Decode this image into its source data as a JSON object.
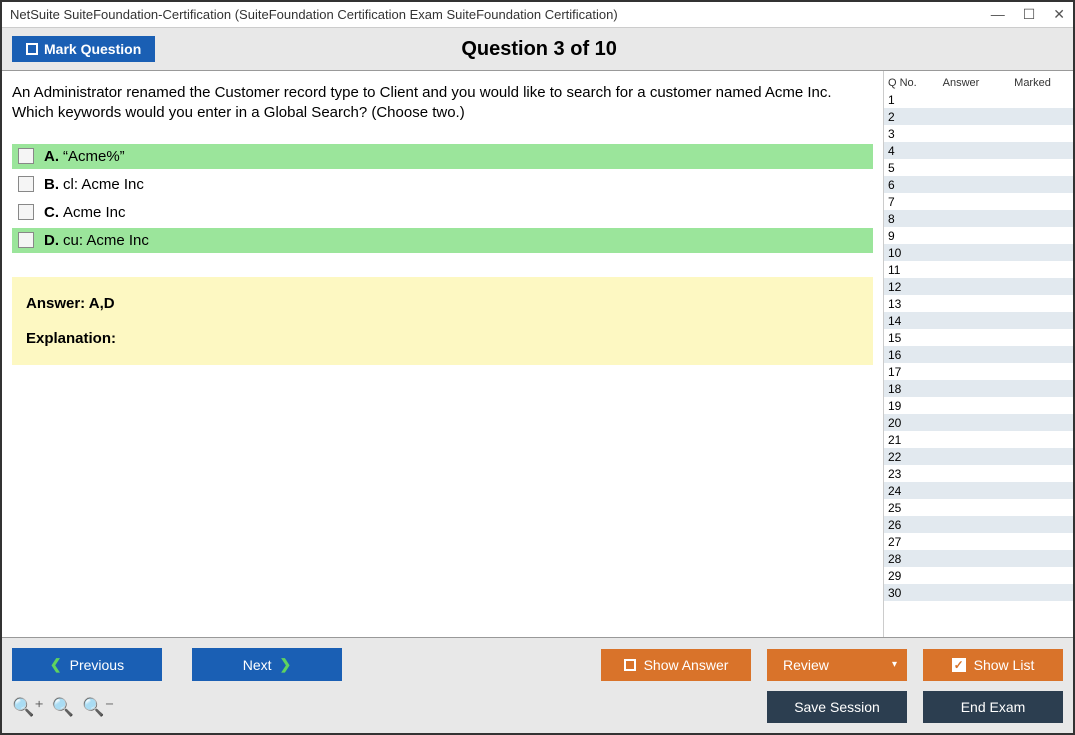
{
  "window": {
    "title": "NetSuite SuiteFoundation-Certification (SuiteFoundation Certification Exam SuiteFoundation Certification)"
  },
  "header": {
    "mark_label": "Mark Question",
    "counter": "Question 3 of 10"
  },
  "question": {
    "text": "An Administrator renamed the Customer record type to Client and you would like to search for a customer named Acme Inc. Which keywords would you enter in a Global Search? (Choose two.)",
    "options": [
      {
        "letter": "A.",
        "text": "“Acme%”",
        "correct": true
      },
      {
        "letter": "B.",
        "text": "cl: Acme Inc",
        "correct": false
      },
      {
        "letter": "C.",
        "text": "Acme Inc",
        "correct": false
      },
      {
        "letter": "D.",
        "text": "cu: Acme Inc",
        "correct": true
      }
    ],
    "answer_line": "Answer: A,D",
    "explanation_label": "Explanation:"
  },
  "sidebar": {
    "cols": {
      "qno": "Q No.",
      "answer": "Answer",
      "marked": "Marked"
    },
    "count": 30
  },
  "footer": {
    "previous": "Previous",
    "next": "Next",
    "show_answer": "Show Answer",
    "review": "Review",
    "show_list": "Show List",
    "save_session": "Save Session",
    "end_exam": "End Exam"
  },
  "colors": {
    "blue": "#1a5fb4",
    "orange": "#d9732a",
    "dark": "#2c3e50",
    "correct_bg": "#9be59b",
    "answer_bg": "#fdf8c2",
    "alt_row": "#e2e9ef"
  }
}
